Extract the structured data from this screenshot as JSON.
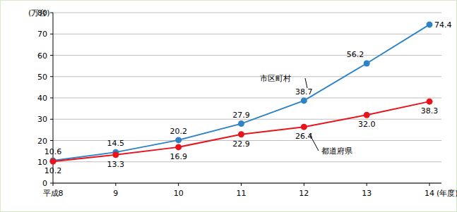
{
  "chart_data": {
    "type": "line",
    "x_label": "(年度)",
    "y_label": "(万台)",
    "categories": [
      "平成8",
      "9",
      "10",
      "11",
      "12",
      "13",
      "14"
    ],
    "series": [
      {
        "name": "市区町村",
        "color": "#2e83c6",
        "marker": "circle",
        "line_style": "solid",
        "values": [
          10.6,
          14.5,
          20.2,
          27.9,
          38.7,
          56.2,
          74.4
        ]
      },
      {
        "name": "都道府県",
        "color": "#e8141c",
        "marker": "circle",
        "line_style": "solid",
        "values": [
          10.2,
          13.3,
          16.9,
          22.9,
          26.4,
          32.0,
          38.3
        ],
        "value_labels": [
          "10.2",
          "13.3",
          "16.9",
          "22.9",
          "26.4",
          "32.0",
          "38.3"
        ]
      }
    ],
    "ylim": [
      0,
      80
    ],
    "yticks": [
      0,
      10,
      20,
      30,
      40,
      50,
      60,
      70,
      80
    ],
    "grid": true,
    "data_labels": true
  }
}
